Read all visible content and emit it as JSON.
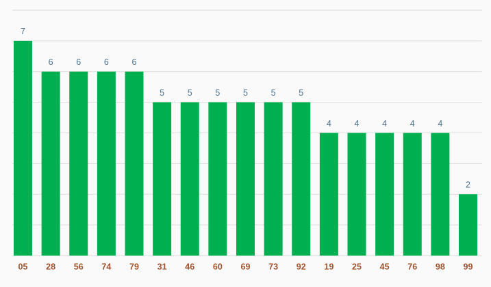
{
  "chart_data": {
    "type": "bar",
    "categories": [
      "05",
      "28",
      "56",
      "74",
      "79",
      "31",
      "46",
      "60",
      "69",
      "73",
      "92",
      "19",
      "25",
      "45",
      "76",
      "98",
      "99"
    ],
    "values": [
      7,
      6,
      6,
      6,
      6,
      5,
      5,
      5,
      5,
      5,
      5,
      4,
      4,
      4,
      4,
      4,
      2
    ],
    "color": "#00b050",
    "ylim": [
      0,
      8
    ],
    "yticks": [
      0,
      1,
      2,
      3,
      4,
      5,
      6,
      7,
      8
    ],
    "grid": true
  }
}
